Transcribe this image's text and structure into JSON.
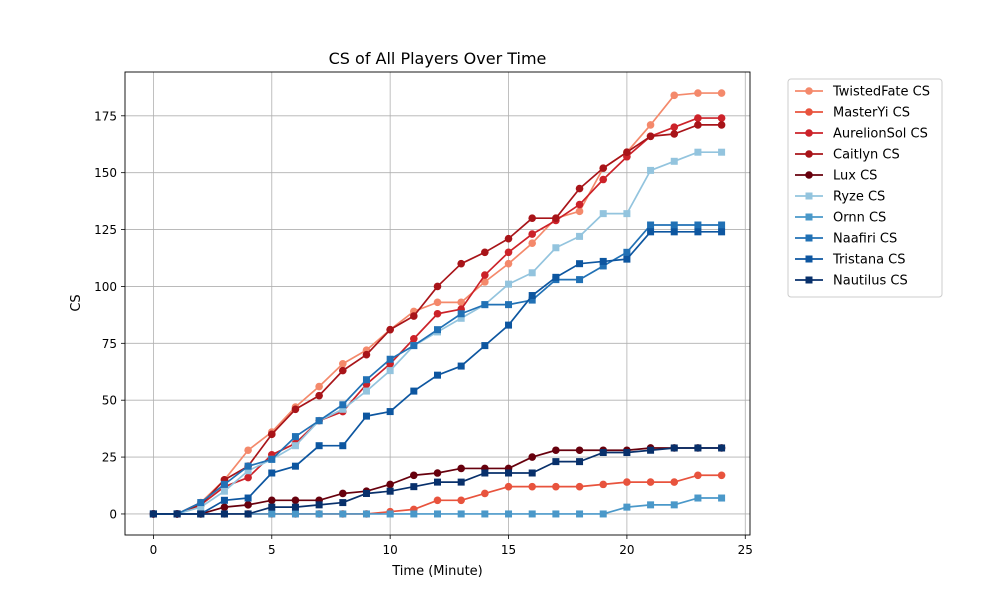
{
  "chart_data": {
    "type": "line",
    "title": "CS of All Players Over Time",
    "xlabel": "Time (Minute)",
    "ylabel": "CS",
    "xlim": [
      -1.2,
      25.2
    ],
    "ylim": [
      -9.25,
      194.25
    ],
    "xticks": [
      0,
      5,
      10,
      15,
      20,
      25
    ],
    "yticks": [
      0,
      25,
      50,
      75,
      100,
      125,
      150,
      175
    ],
    "grid": true,
    "legend_position": "outside-right",
    "x": [
      0,
      1,
      2,
      3,
      4,
      5,
      6,
      7,
      8,
      9,
      10,
      11,
      12,
      13,
      14,
      15,
      16,
      17,
      18,
      19,
      20,
      21,
      22,
      23,
      24
    ],
    "series": [
      {
        "name": "TwistedFate CS",
        "color": "#f4896b",
        "marker": "circle",
        "values": [
          0,
          0,
          5,
          15,
          28,
          36,
          47,
          56,
          66,
          72,
          81,
          89,
          93,
          93,
          102,
          110,
          119,
          130,
          133,
          152,
          159,
          171,
          184,
          185,
          185
        ]
      },
      {
        "name": "MasterYi CS",
        "color": "#e8533d",
        "marker": "circle",
        "values": [
          0,
          0,
          0,
          0,
          0,
          0,
          0,
          0,
          0,
          0,
          1,
          2,
          6,
          6,
          9,
          12,
          12,
          12,
          12,
          13,
          14,
          14,
          14,
          17,
          17
        ]
      },
      {
        "name": "AurelionSol CS",
        "color": "#cc2229",
        "marker": "circle",
        "values": [
          0,
          0,
          4,
          12,
          16,
          26,
          31,
          41,
          45,
          57,
          66,
          77,
          88,
          90,
          105,
          115,
          123,
          129,
          136,
          147,
          157,
          166,
          170,
          174,
          174
        ]
      },
      {
        "name": "Caitlyn CS",
        "color": "#a81419",
        "marker": "circle",
        "values": [
          0,
          0,
          4,
          15,
          21,
          35,
          46,
          52,
          63,
          70,
          81,
          87,
          100,
          110,
          115,
          121,
          130,
          130,
          143,
          152,
          159,
          166,
          167,
          171,
          171
        ]
      },
      {
        "name": "Lux CS",
        "color": "#67000d",
        "marker": "circle",
        "values": [
          0,
          0,
          0,
          3,
          4,
          6,
          6,
          6,
          9,
          10,
          13,
          17,
          18,
          20,
          20,
          20,
          25,
          28,
          28,
          28,
          28,
          29,
          29,
          29,
          29
        ]
      },
      {
        "name": "Ryze CS",
        "color": "#93c4de",
        "marker": "square",
        "values": [
          0,
          0,
          3,
          10,
          19,
          24,
          30,
          41,
          46,
          54,
          63,
          74,
          80,
          86,
          92,
          101,
          106,
          117,
          122,
          132,
          132,
          151,
          155,
          159,
          159
        ]
      },
      {
        "name": "Ornn CS",
        "color": "#4a98c9",
        "marker": "square",
        "values": [
          0,
          0,
          0,
          0,
          0,
          0,
          0,
          0,
          0,
          0,
          0,
          0,
          0,
          0,
          0,
          0,
          0,
          0,
          0,
          0,
          3,
          4,
          4,
          7,
          7
        ]
      },
      {
        "name": "Naafiri CS",
        "color": "#2171b5",
        "marker": "square",
        "values": [
          0,
          0,
          5,
          13,
          21,
          24,
          34,
          41,
          48,
          59,
          68,
          74,
          81,
          88,
          92,
          92,
          94,
          103,
          103,
          109,
          115,
          127,
          127,
          127,
          127
        ]
      },
      {
        "name": "Tristana CS",
        "color": "#0d56a0",
        "marker": "square",
        "values": [
          0,
          0,
          0,
          6,
          7,
          18,
          21,
          30,
          30,
          43,
          45,
          54,
          61,
          65,
          74,
          83,
          96,
          104,
          110,
          111,
          112,
          124,
          124,
          124,
          124
        ]
      },
      {
        "name": "Nautilus CS",
        "color": "#08306b",
        "marker": "square",
        "values": [
          0,
          0,
          0,
          0,
          0,
          3,
          3,
          4,
          5,
          9,
          10,
          12,
          14,
          14,
          18,
          18,
          18,
          23,
          23,
          27,
          27,
          28,
          29,
          29,
          29
        ]
      }
    ]
  }
}
